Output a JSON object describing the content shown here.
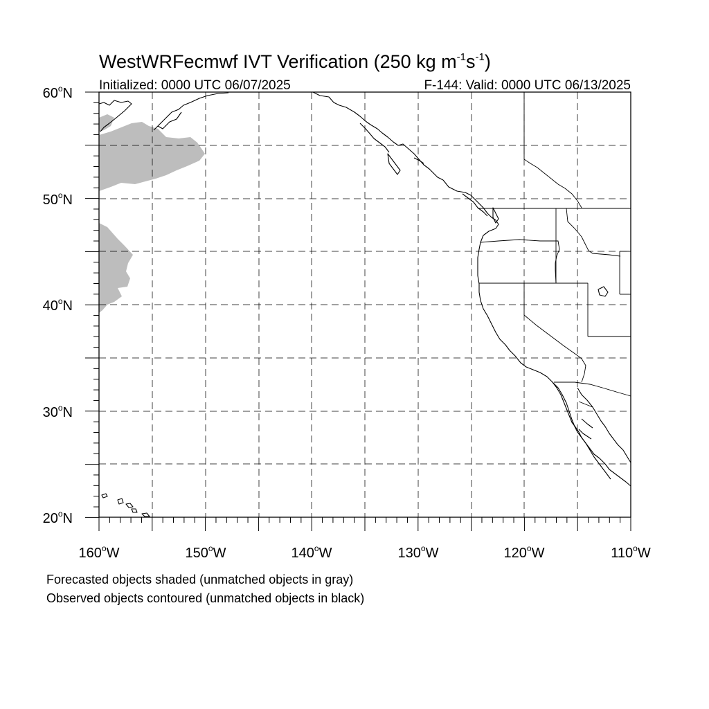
{
  "title_main": "WestWRFecmwf IVT Verification (250 kg m",
  "title_sup1": "-1",
  "title_mid": "s",
  "title_sup2": "-1",
  "title_end": ")",
  "init_text": "Initialized: 0000 UTC 06/07/2025",
  "valid_text": "F-144: Valid: 0000 UTC 06/13/2025",
  "lat_labels": [
    {
      "deg": "60",
      "unit": "N"
    },
    {
      "deg": "50",
      "unit": "N"
    },
    {
      "deg": "40",
      "unit": "N"
    },
    {
      "deg": "30",
      "unit": "N"
    },
    {
      "deg": "20",
      "unit": "N"
    }
  ],
  "lon_labels": [
    {
      "deg": "160",
      "unit": "W"
    },
    {
      "deg": "150",
      "unit": "W"
    },
    {
      "deg": "140",
      "unit": "W"
    },
    {
      "deg": "130",
      "unit": "W"
    },
    {
      "deg": "120",
      "unit": "W"
    },
    {
      "deg": "110",
      "unit": "W"
    }
  ],
  "degree_symbol": "o",
  "footnote_1": "Forecasted objects shaded (unmatched objects in gray)",
  "footnote_2": "Observed objects contoured (unmatched objects in black)",
  "colors": {
    "unmatched_forecast_shade": "#bdbdbd",
    "lines": "#000000"
  }
}
